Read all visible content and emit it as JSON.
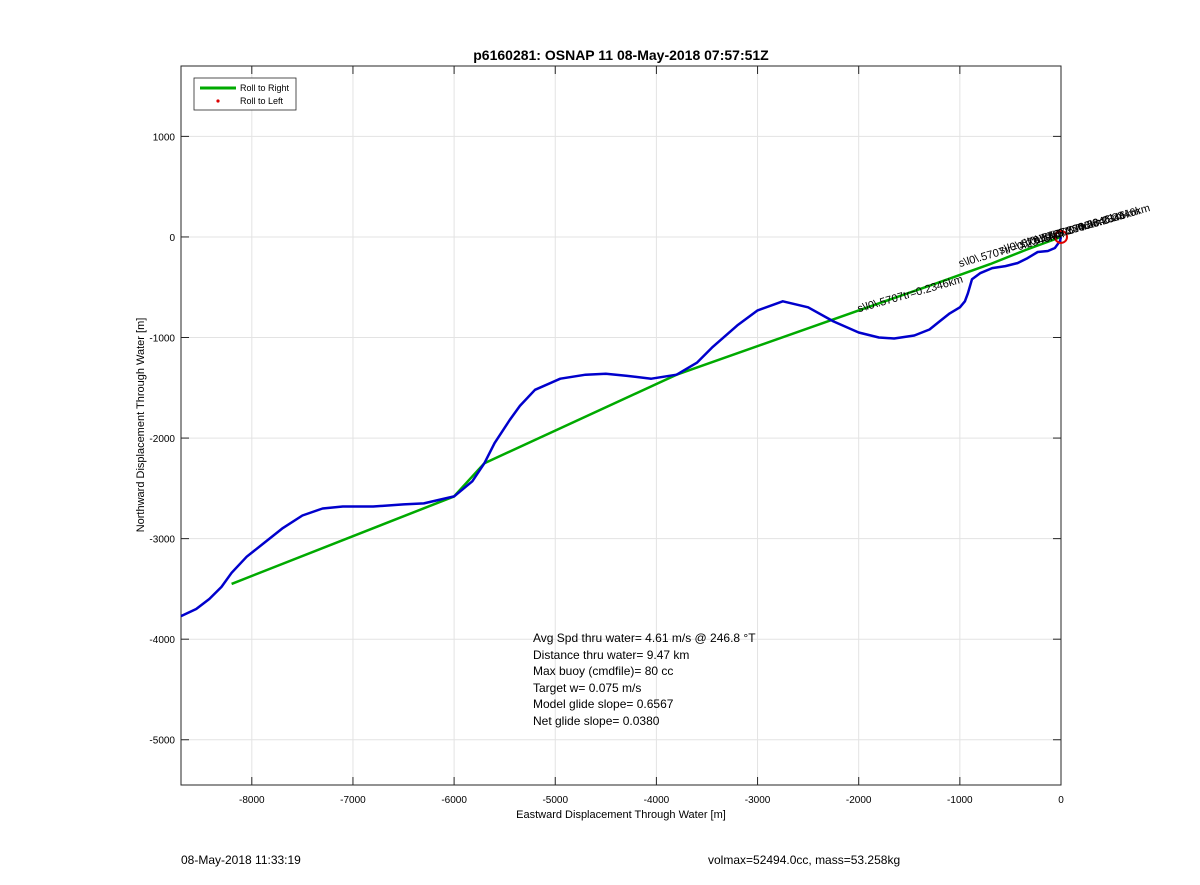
{
  "chart_data": {
    "type": "line",
    "title": "p6160281: OSNAP 11 08-May-2018 07:57:51Z",
    "xlabel": "Eastward Displacement Through Water [m]",
    "ylabel": "Northward Displacement Through Water [m]",
    "xlim": [
      -8700,
      0
    ],
    "ylim": [
      -5450,
      1700
    ],
    "xticks": [
      -8000,
      -7000,
      -6000,
      -5000,
      -4000,
      -3000,
      -2000,
      -1000,
      0
    ],
    "yticks": [
      -5000,
      -4000,
      -3000,
      -2000,
      -1000,
      0,
      1000
    ],
    "grid": true,
    "legend_position": "top-left",
    "legend": [
      {
        "label": "Roll to Right",
        "color": "#00aa00",
        "style": "line"
      },
      {
        "label": "Roll to Left",
        "color": "#dd0000",
        "style": "dot"
      }
    ],
    "series": [
      {
        "name": "Roll to Right",
        "color": "#00aa00",
        "points": [
          [
            -8200,
            -3450
          ],
          [
            -6000,
            -2580
          ],
          [
            -5700,
            -2250
          ],
          [
            -3800,
            -1370
          ],
          [
            -2000,
            -730
          ],
          [
            -1200,
            -450
          ],
          [
            -700,
            -270
          ],
          [
            -350,
            -130
          ],
          [
            0,
            0
          ]
        ]
      },
      {
        "color": "#0000cc",
        "points": [
          [
            -8700,
            -3770
          ],
          [
            -8550,
            -3700
          ],
          [
            -8420,
            -3600
          ],
          [
            -8300,
            -3480
          ],
          [
            -8200,
            -3340
          ],
          [
            -8050,
            -3180
          ],
          [
            -7850,
            -3020
          ],
          [
            -7700,
            -2900
          ],
          [
            -7500,
            -2770
          ],
          [
            -7300,
            -2700
          ],
          [
            -7100,
            -2680
          ],
          [
            -6800,
            -2680
          ],
          [
            -6500,
            -2660
          ],
          [
            -6300,
            -2650
          ],
          [
            -6000,
            -2580
          ],
          [
            -5820,
            -2430
          ],
          [
            -5700,
            -2250
          ],
          [
            -5600,
            -2050
          ],
          [
            -5450,
            -1820
          ],
          [
            -5350,
            -1680
          ],
          [
            -5200,
            -1520
          ],
          [
            -4950,
            -1410
          ],
          [
            -4700,
            -1370
          ],
          [
            -4500,
            -1360
          ],
          [
            -4300,
            -1380
          ],
          [
            -4050,
            -1410
          ],
          [
            -3800,
            -1370
          ],
          [
            -3600,
            -1250
          ],
          [
            -3450,
            -1100
          ],
          [
            -3200,
            -880
          ],
          [
            -3000,
            -730
          ],
          [
            -2750,
            -640
          ],
          [
            -2500,
            -700
          ],
          [
            -2250,
            -840
          ],
          [
            -2000,
            -950
          ],
          [
            -1800,
            -1000
          ],
          [
            -1650,
            -1010
          ],
          [
            -1450,
            -980
          ],
          [
            -1300,
            -920
          ],
          [
            -1200,
            -840
          ],
          [
            -1100,
            -760
          ],
          [
            -1000,
            -700
          ],
          [
            -950,
            -640
          ],
          [
            -920,
            -560
          ],
          [
            -880,
            -420
          ],
          [
            -800,
            -360
          ],
          [
            -680,
            -310
          ],
          [
            -550,
            -290
          ],
          [
            -430,
            -260
          ],
          [
            -330,
            -210
          ],
          [
            -230,
            -150
          ],
          [
            -130,
            -140
          ],
          [
            -60,
            -110
          ],
          [
            -10,
            -40
          ],
          [
            0,
            0
          ]
        ]
      }
    ],
    "marker_end": {
      "x": 0,
      "y": 0,
      "color": "#dd0000"
    },
    "path_labels": [
      {
        "text": "s\\l0\\.5707tr=0.2346km",
        "x": -2000,
        "y": -750,
        "angle": -16
      },
      {
        "text": "s\\l0\\.5707tr=0.2346km",
        "x": -1000,
        "y": -300,
        "angle": -16
      },
      {
        "text": "s\\l0\\.5707tr=0.2346km",
        "x": -600,
        "y": -170,
        "angle": -16
      },
      {
        "text": "s\\l0\\.5707tr=0.2346km",
        "x": -400,
        "y": -110,
        "angle": -16
      },
      {
        "text": "s\\l0\\.5707tr=0.2346km",
        "x": -250,
        "y": -70,
        "angle": -16
      },
      {
        "text": "s\\l0\\.5707tr=0.2346km",
        "x": -150,
        "y": -40,
        "angle": -16
      }
    ],
    "stats": [
      "Avg Spd thru water=  4.61 m/s @ 246.8 °T",
      "Distance thru water=  9.47 km",
      "Max buoy (cmdfile)= 80 cc",
      "Target w= 0.075 m/s",
      "Model glide slope= 0.6567",
      "Net glide slope= 0.0380"
    ]
  },
  "footer": {
    "timestamp": "08-May-2018 11:33:19",
    "info": "volmax=52494.0cc, mass=53.258kg"
  }
}
